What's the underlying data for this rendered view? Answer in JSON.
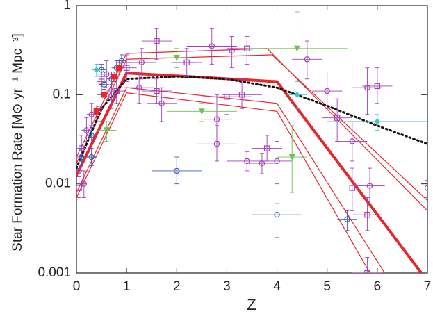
{
  "chart_data": {
    "type": "scatter",
    "x_label": "Z",
    "y_label": "Star Formation Rate  [M⊙ yr⁻¹ Mpc⁻³]",
    "xlim": [
      0,
      7
    ],
    "ylim": [
      0.001,
      1
    ],
    "xticks": [
      0,
      1,
      2,
      3,
      4,
      5,
      6,
      7
    ],
    "yticks": [
      0.001,
      0.01,
      0.1,
      1
    ],
    "log_y": true,
    "lines": [
      {
        "color": "#e8262b",
        "width": 1.2,
        "dash": false,
        "x": [
          0,
          1,
          3.8,
          7
        ],
        "values": [
          0.02,
          0.29,
          0.33,
          0.005
        ]
      },
      {
        "color": "#e8262b",
        "width": 1.2,
        "dash": false,
        "x": [
          0,
          1,
          3.9,
          7
        ],
        "values": [
          0.017,
          0.25,
          0.28,
          0.0065
        ]
      },
      {
        "color": "#e8262b",
        "width": 1.2,
        "dash": false,
        "x": [
          0,
          1,
          4,
          6.2
        ],
        "values": [
          0.008,
          0.12,
          0.08,
          0.0009
        ]
      },
      {
        "color": "#e8262b",
        "width": 1.2,
        "dash": false,
        "x": [
          0,
          1,
          4,
          5.9
        ],
        "values": [
          0.007,
          0.105,
          0.065,
          0.0009
        ]
      },
      {
        "color": "#e8262b",
        "width": 4,
        "dash": false,
        "x": [
          0,
          1,
          4,
          6.88
        ],
        "values": [
          0.0125,
          0.175,
          0.14,
          0.001
        ]
      },
      {
        "color": "#111111",
        "width": 3,
        "dash": true,
        "x": [
          0,
          0.5,
          1,
          2,
          3,
          4,
          5,
          6,
          7
        ],
        "values": [
          0.015,
          0.07,
          0.15,
          0.16,
          0.15,
          0.12,
          0.075,
          0.045,
          0.028
        ]
      }
    ],
    "series": [
      {
        "color": "#a040b8",
        "marker": "circle-open",
        "x": [
          4.6,
          5.0,
          5.8,
          5.5,
          5.85,
          7.0,
          4.0,
          3.7,
          3.4,
          2.8,
          2.8,
          3.1,
          2.7,
          1.3,
          1.25,
          1.7,
          0.6,
          0.3,
          0.2,
          0.05,
          0.15,
          0.45
        ],
        "values": [
          0.25,
          0.11,
          0.12,
          0.03,
          0.0095,
          0.009,
          0.018,
          0.017,
          0.018,
          0.053,
          0.028,
          0.31,
          0.35,
          0.23,
          0.12,
          0.08,
          0.17,
          0.06,
          0.04,
          0.014,
          0.01,
          0.07
        ],
        "xerr": [
          0.3,
          0.3,
          0.3,
          0.3,
          0.3,
          0.2,
          0.3,
          0.3,
          0.4,
          0.3,
          0.4,
          0.4,
          0.5,
          0.3,
          0.3,
          0.3,
          0.2,
          0.1,
          0.1,
          0.05,
          0.05,
          0.1
        ],
        "ylow": [
          0.15,
          0.07,
          0.06,
          0.018,
          0.006,
          0.007,
          0.01,
          0.013,
          0.014,
          0.03,
          0.018,
          0.2,
          0.22,
          0.15,
          0.08,
          0.05,
          0.12,
          0.045,
          0.03,
          0.01,
          0.007,
          0.05
        ],
        "yhigh": [
          0.4,
          0.18,
          0.2,
          0.05,
          0.015,
          0.011,
          0.03,
          0.022,
          0.023,
          0.1,
          0.045,
          0.45,
          0.55,
          0.33,
          0.18,
          0.12,
          0.24,
          0.08,
          0.055,
          0.02,
          0.014,
          0.1
        ]
      },
      {
        "color": "#a040b8",
        "marker": "square-open",
        "x": [
          6.0,
          5.2,
          5.5,
          5.8,
          5.8,
          3.8,
          3.0,
          1.6,
          2.2,
          1.6,
          0.8,
          0.5,
          0.1,
          0.05,
          0.7,
          1.0,
          3.3,
          3.4
        ],
        "values": [
          0.125,
          0.055,
          0.009,
          0.0045,
          0.001,
          0.025,
          0.095,
          0.4,
          0.23,
          0.11,
          0.11,
          0.14,
          0.025,
          0.009,
          0.095,
          0.2,
          0.1,
          0.33
        ],
        "xerr": [
          0.3,
          0.3,
          0.3,
          0.3,
          0.3,
          0.3,
          0.5,
          0.3,
          0.3,
          0.3,
          0.2,
          0.1,
          0.1,
          0.05,
          0.1,
          0.2,
          0.4,
          0.4
        ],
        "ylow": [
          0.08,
          0.03,
          0.005,
          0.003,
          0.0006,
          0.018,
          0.06,
          0.25,
          0.16,
          0.08,
          0.08,
          0.1,
          0.018,
          0.007,
          0.07,
          0.14,
          0.07,
          0.22
        ],
        "yhigh": [
          0.2,
          0.09,
          0.015,
          0.007,
          0.0015,
          0.035,
          0.15,
          0.55,
          0.33,
          0.15,
          0.15,
          0.19,
          0.035,
          0.012,
          0.13,
          0.28,
          0.15,
          0.45
        ]
      },
      {
        "color": "#3a5cb0",
        "marker": "circle-open",
        "x": [
          0.1,
          0.3,
          0.5,
          0.55,
          0.9,
          0.8,
          0.7,
          2.0,
          4.0,
          5.4,
          0.3
        ],
        "values": [
          0.02,
          0.02,
          0.19,
          0.13,
          0.24,
          0.2,
          0.15,
          0.014,
          0.0045,
          0.004,
          0.035
        ],
        "xerr": [
          0.05,
          0.1,
          0.1,
          0.1,
          0.1,
          0.1,
          0.1,
          0.5,
          0.5,
          0.2,
          0.1
        ],
        "ylow": [
          0.016,
          0.016,
          0.16,
          0.1,
          0.2,
          0.16,
          0.12,
          0.01,
          0.0025,
          0.003,
          0.028
        ],
        "yhigh": [
          0.025,
          0.025,
          0.22,
          0.16,
          0.28,
          0.24,
          0.18,
          0.02,
          0.006,
          0.005,
          0.043
        ]
      },
      {
        "color": "#70c050",
        "marker": "triangle",
        "x": [
          4.4,
          4.3,
          2.5,
          0.6,
          2.0
        ],
        "values": [
          0.33,
          0.02,
          0.065,
          0.04,
          0.26
        ],
        "xerr": [
          1.0,
          0.3,
          0.7,
          0.2,
          0.3
        ],
        "ylow": [
          0.1,
          0.008,
          0.05,
          0.03,
          0.2
        ],
        "yhigh": [
          0.85,
          0.045,
          0.08,
          0.05,
          0.33
        ]
      },
      {
        "color": "#40c0d0",
        "marker": "diamond",
        "x": [
          6.0,
          4.4,
          0.4
        ],
        "values": [
          0.05,
          0.1,
          0.19
        ],
        "xerr": [
          1.0,
          0.2,
          0.1
        ],
        "ylow": [
          0.04,
          0.07,
          0.16
        ],
        "yhigh": [
          0.06,
          0.14,
          0.22
        ]
      },
      {
        "color": "#e8262b",
        "marker": "square-filled",
        "x": [
          0.4,
          0.55,
          0.75,
          0.85
        ],
        "values": [
          0.065,
          0.1,
          0.16,
          0.2
        ],
        "xerr": [
          0.05,
          0.05,
          0.05,
          0.05
        ],
        "ylow": [
          0.055,
          0.085,
          0.14,
          0.17
        ],
        "yhigh": [
          0.075,
          0.115,
          0.18,
          0.23
        ]
      }
    ]
  }
}
